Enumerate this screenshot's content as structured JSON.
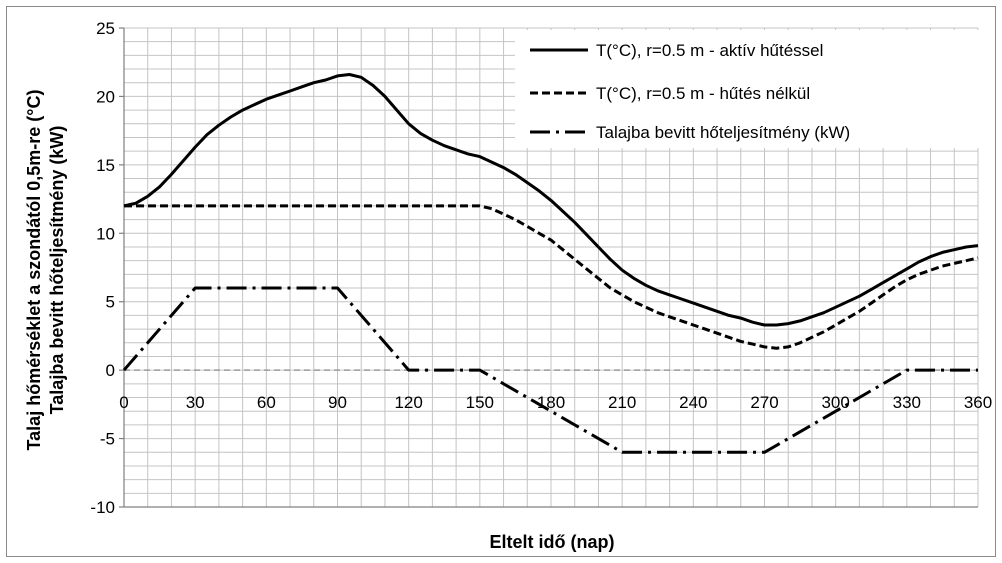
{
  "chart_data": {
    "type": "line",
    "title": "",
    "xlabel": "Eltelt idő (nap)",
    "ylabel_line1": "Talaj hőmérséklet a szondától 0,5m-re (°C)",
    "ylabel_line2": "Talajba bevitt hőteljesítmény (kW)",
    "xlim": [
      0,
      360
    ],
    "ylim": [
      -10,
      25
    ],
    "x_ticks": [
      0,
      30,
      60,
      90,
      120,
      150,
      180,
      210,
      240,
      270,
      300,
      330,
      360
    ],
    "y_ticks": [
      -10,
      -5,
      0,
      5,
      10,
      15,
      20,
      25
    ],
    "x_tick_labels": [
      "0",
      "30",
      "60",
      "90",
      "120",
      "150",
      "180",
      "210",
      "240",
      "270",
      "300",
      "330",
      "360"
    ],
    "y_tick_labels": [
      "-10",
      "-5",
      "0",
      "5",
      "10",
      "15",
      "20",
      "25"
    ],
    "grid": true,
    "legend_position": "top-right",
    "series": [
      {
        "name": "T(°C), r=0.5 m - aktív hűtéssel",
        "style": "solid",
        "color": "#000000",
        "x": [
          0,
          5,
          10,
          15,
          20,
          25,
          30,
          35,
          40,
          45,
          50,
          55,
          60,
          65,
          70,
          75,
          80,
          85,
          90,
          95,
          100,
          105,
          110,
          115,
          120,
          125,
          130,
          135,
          140,
          145,
          150,
          155,
          160,
          165,
          170,
          175,
          180,
          185,
          190,
          195,
          200,
          205,
          210,
          215,
          220,
          225,
          230,
          235,
          240,
          245,
          250,
          255,
          260,
          265,
          270,
          275,
          280,
          285,
          290,
          295,
          300,
          305,
          310,
          315,
          320,
          325,
          330,
          335,
          340,
          345,
          350,
          355,
          360
        ],
        "y": [
          12.0,
          12.2,
          12.7,
          13.4,
          14.3,
          15.3,
          16.3,
          17.2,
          17.9,
          18.5,
          19.0,
          19.4,
          19.8,
          20.1,
          20.4,
          20.7,
          21.0,
          21.2,
          21.5,
          21.6,
          21.4,
          20.8,
          20.0,
          19.0,
          18.0,
          17.3,
          16.8,
          16.4,
          16.1,
          15.8,
          15.6,
          15.2,
          14.8,
          14.3,
          13.7,
          13.1,
          12.4,
          11.6,
          10.8,
          9.9,
          9.0,
          8.1,
          7.3,
          6.7,
          6.2,
          5.8,
          5.5,
          5.2,
          4.9,
          4.6,
          4.3,
          4.0,
          3.8,
          3.5,
          3.3,
          3.3,
          3.4,
          3.6,
          3.9,
          4.2,
          4.6,
          5.0,
          5.4,
          5.9,
          6.4,
          6.9,
          7.4,
          7.9,
          8.3,
          8.6,
          8.8,
          9.0,
          9.1
        ]
      },
      {
        "name": "T(°C), r=0.5 m - hűtés nélkül",
        "style": "dashed",
        "color": "#000000",
        "x": [
          0,
          30,
          60,
          90,
          120,
          150,
          155,
          160,
          165,
          170,
          175,
          180,
          185,
          190,
          195,
          200,
          205,
          210,
          215,
          220,
          225,
          230,
          235,
          240,
          245,
          250,
          255,
          260,
          265,
          270,
          275,
          280,
          285,
          290,
          295,
          300,
          305,
          310,
          315,
          320,
          325,
          330,
          335,
          340,
          345,
          350,
          355,
          360
        ],
        "y": [
          12.0,
          12.0,
          12.0,
          12.0,
          12.0,
          12.0,
          11.8,
          11.4,
          11.0,
          10.5,
          10.0,
          9.5,
          8.8,
          8.1,
          7.4,
          6.7,
          6.0,
          5.5,
          5.0,
          4.6,
          4.2,
          3.9,
          3.6,
          3.3,
          3.0,
          2.7,
          2.4,
          2.1,
          1.9,
          1.7,
          1.6,
          1.7,
          2.0,
          2.4,
          2.8,
          3.3,
          3.8,
          4.3,
          4.9,
          5.5,
          6.1,
          6.6,
          7.0,
          7.3,
          7.6,
          7.8,
          8.0,
          8.2
        ]
      },
      {
        "name": "Talajba bevitt hőteljesítmény (kW)",
        "style": "dashdot",
        "color": "#000000",
        "x": [
          0,
          30,
          60,
          90,
          120,
          150,
          210,
          240,
          270,
          330,
          360
        ],
        "y": [
          0,
          6,
          6,
          6,
          0,
          0,
          -6,
          -6,
          -6,
          0,
          0
        ]
      }
    ]
  }
}
